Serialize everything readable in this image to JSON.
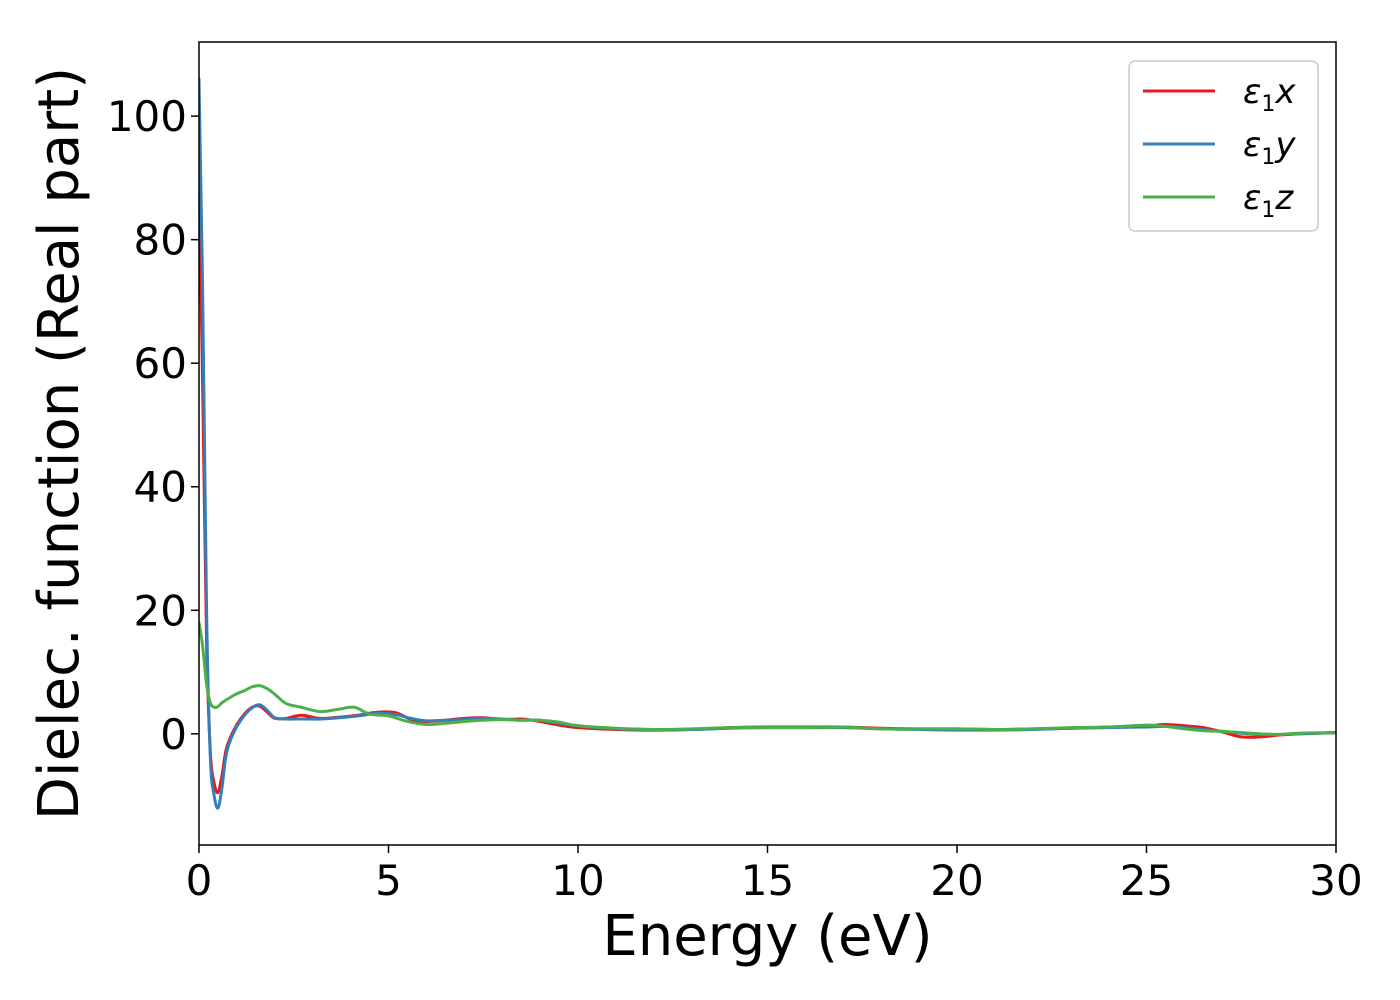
{
  "chart_data": {
    "type": "line",
    "title": "",
    "xlabel": "Energy (eV)",
    "ylabel": "Dielec. function (Real part)",
    "xlim": [
      0,
      30
    ],
    "ylim": [
      -18,
      112
    ],
    "xticks": [
      0,
      5,
      10,
      15,
      20,
      25,
      30
    ],
    "yticks": [
      0,
      20,
      40,
      60,
      80,
      100
    ],
    "grid": false,
    "legend": {
      "position": "top-right"
    },
    "series": [
      {
        "name": "ε1x",
        "legend_base": "ε",
        "legend_sub": "1",
        "legend_var": "x",
        "color": "#e41a1c",
        "x": [
          0,
          0.1,
          0.2,
          0.3,
          0.4,
          0.5,
          0.6,
          0.7,
          0.8,
          1.0,
          1.2,
          1.4,
          1.6,
          1.8,
          2.0,
          2.3,
          2.7,
          3.2,
          3.7,
          4.2,
          4.7,
          5.2,
          5.6,
          6.0,
          6.5,
          7.0,
          7.5,
          8.0,
          8.5,
          9.0,
          9.5,
          10.0,
          11.0,
          12.0,
          13.0,
          14.0,
          15.0,
          16.0,
          17.0,
          18.0,
          19.0,
          20.0,
          21.0,
          22.0,
          23.0,
          24.0,
          25.0,
          25.5,
          26.0,
          26.5,
          27.0,
          27.5,
          28.0,
          28.5,
          29.0,
          30.0
        ],
        "values": [
          90,
          55,
          15,
          -3,
          -8,
          -9.5,
          -7,
          -3,
          -1,
          1.5,
          3.2,
          4.3,
          4.5,
          3.5,
          2.5,
          2.5,
          3.0,
          2.5,
          2.7,
          3.0,
          3.5,
          3.4,
          2.3,
          2.0,
          2.2,
          2.5,
          2.6,
          2.3,
          2.4,
          2.0,
          1.4,
          1.0,
          0.7,
          0.6,
          0.7,
          1.0,
          1.1,
          1.1,
          1.1,
          0.9,
          0.8,
          0.8,
          0.7,
          0.8,
          0.9,
          1.1,
          1.3,
          1.5,
          1.3,
          1.0,
          0.3,
          -0.5,
          -0.5,
          -0.2,
          0.0,
          0.2
        ]
      },
      {
        "name": "ε1y",
        "legend_base": "ε",
        "legend_sub": "1",
        "legend_var": "y",
        "color": "#377eb8",
        "x": [
          0,
          0.1,
          0.2,
          0.3,
          0.4,
          0.5,
          0.6,
          0.7,
          0.8,
          1.0,
          1.2,
          1.4,
          1.6,
          1.8,
          2.0,
          2.3,
          2.7,
          3.2,
          3.7,
          4.2,
          4.7,
          5.2,
          5.6,
          6.0,
          6.5,
          7.0,
          7.5,
          8.0,
          8.5,
          9.0,
          9.5,
          10.0,
          11.0,
          12.0,
          13.0,
          14.0,
          15.0,
          16.0,
          17.0,
          18.0,
          19.0,
          20.0,
          21.0,
          22.0,
          23.0,
          24.0,
          25.0,
          25.5,
          26.0,
          26.5,
          27.0,
          27.5,
          28.0,
          28.5,
          29.0,
          30.0
        ],
        "values": [
          106,
          70,
          20,
          -4,
          -10,
          -12,
          -9,
          -4,
          -1.5,
          1.2,
          3.0,
          4.2,
          4.7,
          3.8,
          2.6,
          2.4,
          2.4,
          2.4,
          2.6,
          2.9,
          3.3,
          3.1,
          2.5,
          2.1,
          2.2,
          2.3,
          2.5,
          2.4,
          2.2,
          2.2,
          1.7,
          1.3,
          0.8,
          0.7,
          0.7,
          0.9,
          1.0,
          1.0,
          1.0,
          0.8,
          0.7,
          0.6,
          0.6,
          0.7,
          0.9,
          1.0,
          1.1,
          1.2,
          1.0,
          0.7,
          0.4,
          0.1,
          -0.1,
          -0.1,
          0.0,
          0.2
        ]
      },
      {
        "name": "ε1z",
        "legend_base": "ε",
        "legend_sub": "1",
        "legend_var": "z",
        "color": "#4daf4a",
        "x": [
          0,
          0.1,
          0.2,
          0.3,
          0.4,
          0.5,
          0.6,
          0.8,
          1.0,
          1.2,
          1.4,
          1.6,
          1.8,
          2.0,
          2.3,
          2.7,
          3.2,
          3.7,
          4.1,
          4.5,
          5.0,
          5.5,
          6.0,
          6.5,
          7.0,
          7.5,
          8.0,
          8.5,
          9.0,
          9.5,
          10.0,
          11.0,
          12.0,
          13.0,
          14.0,
          15.0,
          16.0,
          17.0,
          18.0,
          19.0,
          20.0,
          21.0,
          22.0,
          23.0,
          24.0,
          25.0,
          25.5,
          26.0,
          26.5,
          27.0,
          27.5,
          28.0,
          28.5,
          29.0,
          30.0
        ],
        "values": [
          18,
          14,
          8,
          5,
          4.3,
          4.4,
          5.0,
          5.8,
          6.5,
          7.0,
          7.6,
          7.8,
          7.3,
          6.4,
          4.9,
          4.3,
          3.6,
          4.0,
          4.3,
          3.2,
          2.9,
          2.0,
          1.5,
          1.7,
          2.0,
          2.2,
          2.3,
          2.2,
          2.2,
          1.9,
          1.3,
          0.9,
          0.7,
          0.8,
          1.0,
          1.0,
          1.0,
          1.1,
          0.8,
          0.8,
          0.8,
          0.7,
          0.8,
          1.0,
          1.1,
          1.4,
          1.2,
          0.8,
          0.5,
          0.4,
          0.2,
          0.0,
          -0.1,
          0.1,
          0.2
        ]
      }
    ]
  }
}
